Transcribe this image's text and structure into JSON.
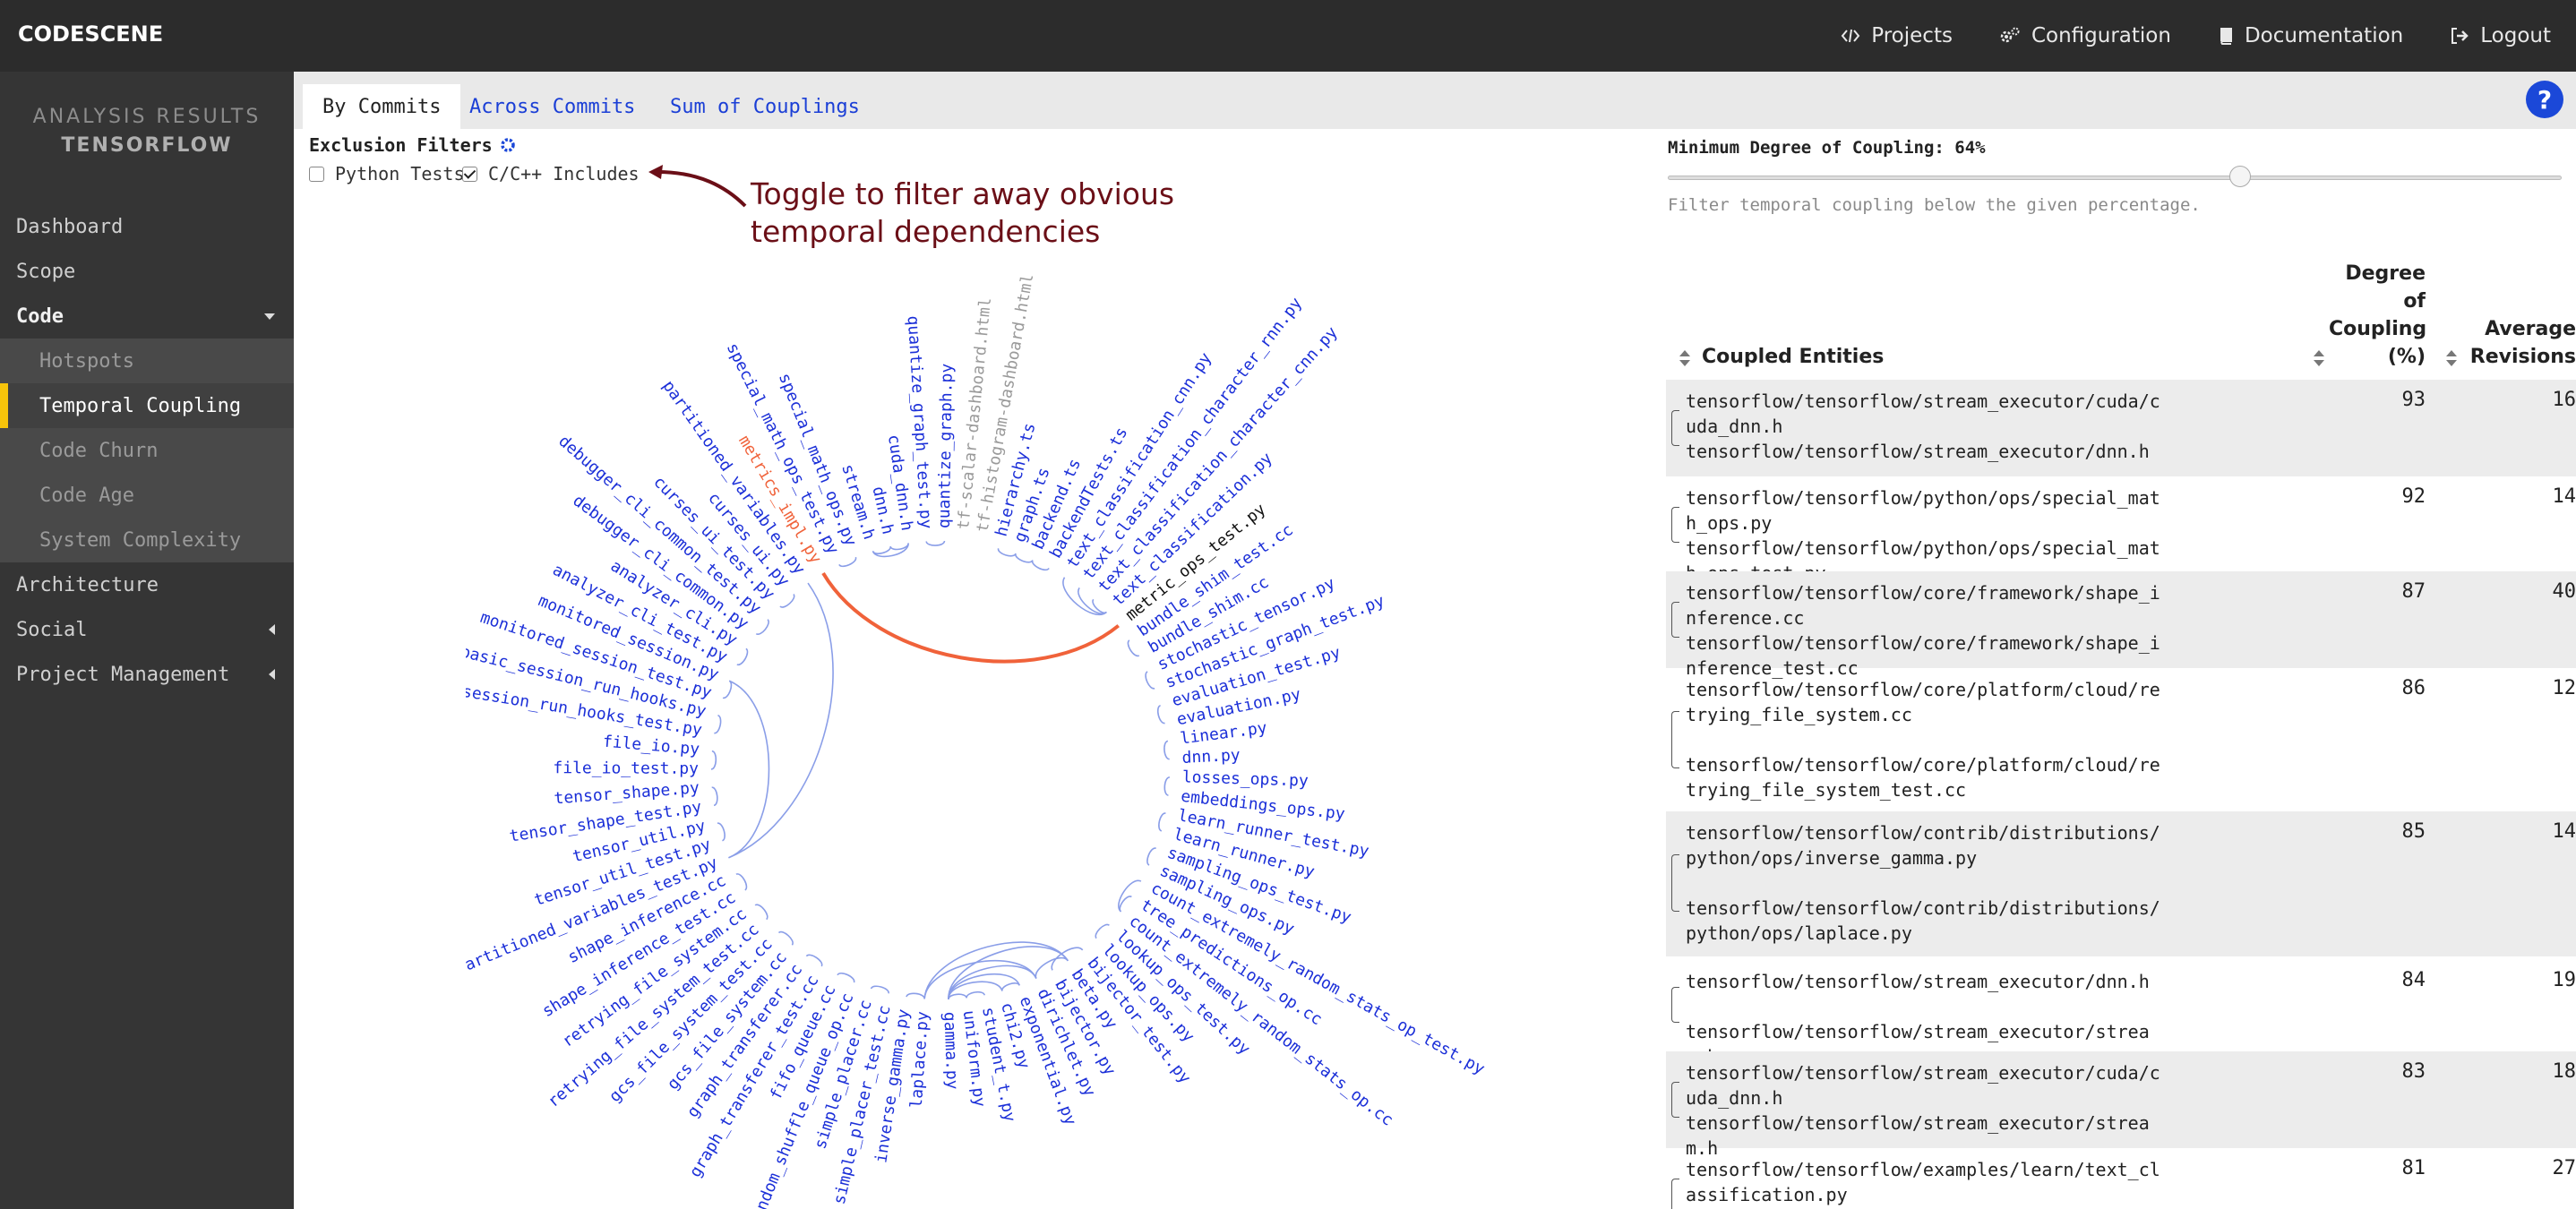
{
  "brand": "CODESCENE",
  "topnav": [
    {
      "label": "Projects",
      "icon": "code-icon"
    },
    {
      "label": "Configuration",
      "icon": "cogs-icon"
    },
    {
      "label": "Documentation",
      "icon": "book-icon"
    },
    {
      "label": "Logout",
      "icon": "logout-icon"
    }
  ],
  "sidebar": {
    "analysis_label": "ANALYSIS RESULTS",
    "project_name": "TENSORFLOW",
    "items": [
      {
        "label": "Dashboard"
      },
      {
        "label": "Scope"
      },
      {
        "label": "Code"
      },
      {
        "label": "Architecture"
      },
      {
        "label": "Social"
      },
      {
        "label": "Project Management"
      }
    ],
    "code_sub": [
      {
        "label": "Hotspots"
      },
      {
        "label": "Temporal Coupling"
      },
      {
        "label": "Code Churn"
      },
      {
        "label": "Code Age"
      },
      {
        "label": "System Complexity"
      }
    ]
  },
  "tabs": [
    {
      "label": "By Commits"
    },
    {
      "label": "Across Commits"
    },
    {
      "label": "Sum of Couplings"
    }
  ],
  "filters": {
    "title": "Exclusion Filters",
    "python_tests": "Python Tests",
    "python_tests_checked": false,
    "cc_includes": "C/C++ Includes",
    "cc_includes_checked": true
  },
  "annotation": {
    "line1": "Toggle to filter away obvious",
    "line2": "temporal dependencies",
    "color": "#6b0f17"
  },
  "coupling": {
    "title": "Minimum Degree of Coupling: 64%",
    "value_percent": 64,
    "hint": "Filter temporal coupling below the given percentage."
  },
  "table": {
    "col_entities": "Coupled Entities",
    "col_degree": [
      "Degree",
      "of",
      "Coupling",
      "(%)"
    ],
    "col_revisions": [
      "Average",
      "Revisions"
    ],
    "rows": [
      {
        "a": "tensorflow/tensorflow/stream_executor/cuda/cuda_dnn.h",
        "b": "tensorflow/tensorflow/stream_executor/dnn.h",
        "degree": "93",
        "revs": "16"
      },
      {
        "a": "tensorflow/tensorflow/python/ops/special_math_ops.py",
        "b": "tensorflow/tensorflow/python/ops/special_math_ops_test.py",
        "degree": "92",
        "revs": "14"
      },
      {
        "a": "tensorflow/tensorflow/core/framework/shape_inference.cc",
        "b": "tensorflow/tensorflow/core/framework/shape_inference_test.cc",
        "degree": "87",
        "revs": "40"
      },
      {
        "a": "tensorflow/tensorflow/core/platform/cloud/retrying_file_system.cc",
        "b": "tensorflow/tensorflow/core/platform/cloud/retrying_file_system_test.cc",
        "degree": "86",
        "revs": "12"
      },
      {
        "a": "tensorflow/tensorflow/contrib/distributions/python/ops/inverse_gamma.py",
        "b": "tensorflow/tensorflow/contrib/distributions/python/ops/laplace.py",
        "degree": "85",
        "revs": "14"
      },
      {
        "a": "tensorflow/tensorflow/stream_executor/dnn.h",
        "b": "tensorflow/tensorflow/stream_executor/stream.h",
        "degree": "84",
        "revs": "19"
      },
      {
        "a": "tensorflow/tensorflow/stream_executor/cuda/cuda_dnn.h",
        "b": "tensorflow/tensorflow/stream_executor/stream.h",
        "degree": "83",
        "revs": "18"
      },
      {
        "a": "tensorflow/tensorflow/examples/learn/text_classification.py",
        "b": "",
        "degree": "81",
        "revs": "27"
      }
    ]
  },
  "wheel": {
    "highlight_color": "#f0623a",
    "link_color": "#8a9ee8",
    "highlight_label": "metrics_impl.py",
    "highlight_partner": "metric_ops_test.py",
    "labels": [
      "laplace.py",
      "inverse_gamma.py",
      "simple_placer_test.cc",
      "simple_placer.cc",
      "random_shuffle_queue_op.cc",
      "fifo_queue.cc",
      "graph_transferer_test.cc",
      "graph_transferer.cc",
      "gcs_file_system.cc",
      "gcs_file_system_test.cc",
      "retrying_file_system_test.cc",
      "retrying_file_system.cc",
      "shape_inference_test.cc",
      "shape_inference.cc",
      "partitioned_variables_test.py",
      "tensor_util_test.py",
      "tensor_util.py",
      "tensor_shape_test.py",
      "tensor_shape.py",
      "file_io_test.py",
      "file_io.py",
      "basic_session_run_hooks_test.py",
      "basic_session_run_hooks.py",
      "monitored_session_test.py",
      "monitored_session.py",
      "analyzer_cli_test.py",
      "analyzer_cli.py",
      "debugger_cli_common.py",
      "debugger_cli_common_test.py",
      "curses_ui_test.py",
      "curses_ui.py",
      "partitioned_variables.py",
      "metrics_impl.py",
      "special_math_ops_test.py",
      "special_math_ops.py",
      "stream.h",
      "dnn.h",
      "cuda_dnn.h",
      "quantize_graph_test.py",
      "quantize_graph.py",
      "tf-scalar-dashboard.html",
      "tf-histogram-dashboard.html",
      "hierarchy.ts",
      "graph.ts",
      "backend.ts",
      "backendTests.ts",
      "text_classification_cnn.py",
      "text_classification_character_rnn.py",
      "text_classification_character_cnn.py",
      "text_classification.py",
      "metric_ops_test.py",
      "bundle_shim_test.cc",
      "bundle_shim.cc",
      "stochastic_tensor.py",
      "stochastic_graph_test.py",
      "evaluation_test.py",
      "evaluation.py",
      "linear.py",
      "dnn.py",
      "losses_ops.py",
      "embeddings_ops.py",
      "learn_runner_test.py",
      "learn_runner.py",
      "sampling_ops_test.py",
      "sampling_ops.py",
      "count_extremely_random_stats_op_test.py",
      "tree_predictions_op.cc",
      "count_extremely_random_stats_op.cc",
      "lookup_ops_test.py",
      "lookup_ops.py",
      "bijector_test.py",
      "beta.py",
      "bijector.py",
      "dirichlet.py",
      "exponential.py",
      "chi2.py",
      "student_t.py",
      "uniform.py",
      "gamma.py"
    ],
    "gray_labels": [
      "tf-scalar-dashboard.html",
      "tf-histogram-dashboard.html"
    ],
    "black_labels": [
      "metric_ops_test.py"
    ],
    "pairs": [
      [
        "laplace.py",
        "inverse_gamma.py"
      ],
      [
        "simple_placer_test.cc",
        "simple_placer.cc"
      ],
      [
        "random_shuffle_queue_op.cc",
        "fifo_queue.cc"
      ],
      [
        "graph_transferer_test.cc",
        "graph_transferer.cc"
      ],
      [
        "gcs_file_system.cc",
        "gcs_file_system_test.cc"
      ],
      [
        "retrying_file_system_test.cc",
        "retrying_file_system.cc"
      ],
      [
        "shape_inference_test.cc",
        "shape_inference.cc"
      ],
      [
        "partitioned_variables_test.py",
        "partitioned_variables.py"
      ],
      [
        "tensor_util_test.py",
        "tensor_util.py"
      ],
      [
        "tensor_shape_test.py",
        "tensor_shape.py"
      ],
      [
        "file_io_test.py",
        "file_io.py"
      ],
      [
        "basic_session_run_hooks_test.py",
        "basic_session_run_hooks.py"
      ],
      [
        "monitored_session_test.py",
        "monitored_session.py"
      ],
      [
        "analyzer_cli_test.py",
        "analyzer_cli.py"
      ],
      [
        "debugger_cli_common.py",
        "debugger_cli_common_test.py"
      ],
      [
        "curses_ui_test.py",
        "curses_ui.py"
      ],
      [
        "special_math_ops_test.py",
        "special_math_ops.py"
      ],
      [
        "stream.h",
        "dnn.h"
      ],
      [
        "dnn.h",
        "cuda_dnn.h"
      ],
      [
        "stream.h",
        "cuda_dnn.h"
      ],
      [
        "quantize_graph_test.py",
        "quantize_graph.py"
      ],
      [
        "hierarchy.ts",
        "graph.ts"
      ],
      [
        "graph.ts",
        "backend.ts"
      ],
      [
        "backend.ts",
        "backendTests.ts"
      ],
      [
        "text_classification_cnn.py",
        "text_classification.py"
      ],
      [
        "text_classification_character_rnn.py",
        "text_classification.py"
      ],
      [
        "text_classification_character_cnn.py",
        "text_classification.py"
      ],
      [
        "bundle_shim_test.cc",
        "bundle_shim.cc"
      ],
      [
        "stochastic_tensor.py",
        "stochastic_graph_test.py"
      ],
      [
        "evaluation_test.py",
        "evaluation.py"
      ],
      [
        "linear.py",
        "dnn.py"
      ],
      [
        "losses_ops.py",
        "embeddings_ops.py"
      ],
      [
        "learn_runner_test.py",
        "learn_runner.py"
      ],
      [
        "sampling_ops_test.py",
        "sampling_ops.py"
      ],
      [
        "count_extremely_random_stats_op_test.py",
        "count_extremely_random_stats_op.cc"
      ],
      [
        "tree_predictions_op.cc",
        "count_extremely_random_stats_op.cc"
      ],
      [
        "lookup_ops_test.py",
        "lookup_ops.py"
      ],
      [
        "bijector_test.py",
        "bijector.py"
      ],
      [
        "beta.py",
        "dirichlet.py"
      ],
      [
        "beta.py",
        "gamma.py"
      ],
      [
        "dirichlet.py",
        "gamma.py"
      ],
      [
        "exponential.py",
        "gamma.py"
      ],
      [
        "chi2.py",
        "gamma.py"
      ],
      [
        "student_t.py",
        "uniform.py"
      ],
      [
        "uniform.py",
        "gamma.py"
      ],
      [
        "exponential.py",
        "chi2.py"
      ],
      [
        "beta.py",
        "laplace.py"
      ],
      [
        "dirichlet.py",
        "laplace.py"
      ],
      [
        "monitored_session.py",
        "partitioned_variables_test.py"
      ],
      [
        "metrics_impl.py",
        "metric_ops_test.py"
      ]
    ]
  }
}
